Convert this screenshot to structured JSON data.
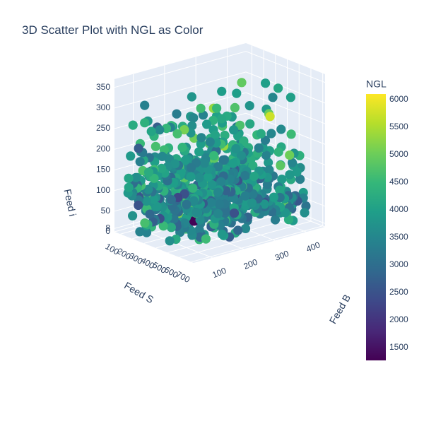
{
  "chart_data": {
    "type": "scatter3d",
    "title": "3D Scatter Plot with NGL as Color",
    "axes": {
      "x": {
        "label": "Feed S",
        "ticks": [
          100,
          200,
          300,
          400,
          500,
          600,
          700
        ],
        "range": [
          50,
          720
        ]
      },
      "y": {
        "label": "Feed B",
        "ticks": [
          100,
          200,
          300,
          400
        ],
        "range": [
          40,
          460
        ]
      },
      "z": {
        "label": "Feed i",
        "ticks": [
          0,
          8,
          50,
          100,
          150,
          200,
          250,
          300,
          350
        ],
        "range": [
          0,
          370
        ]
      }
    },
    "colorbar": {
      "title": "NGL",
      "colorscale": "Viridis",
      "range": [
        1270,
        6100
      ],
      "ticks": [
        1500,
        2000,
        2500,
        3000,
        3500,
        4000,
        4500,
        5000,
        5500,
        6000
      ]
    },
    "point_count_estimate": 700,
    "colors": {
      "scene_bg": "#e5ecf6",
      "grid": "#ffffff",
      "text": "#2a3f5f",
      "viridis": [
        "#440154",
        "#482878",
        "#3e4989",
        "#31688e",
        "#26828e",
        "#1f9e89",
        "#35b779",
        "#6ece58",
        "#b5de2b",
        "#fde725"
      ]
    }
  }
}
